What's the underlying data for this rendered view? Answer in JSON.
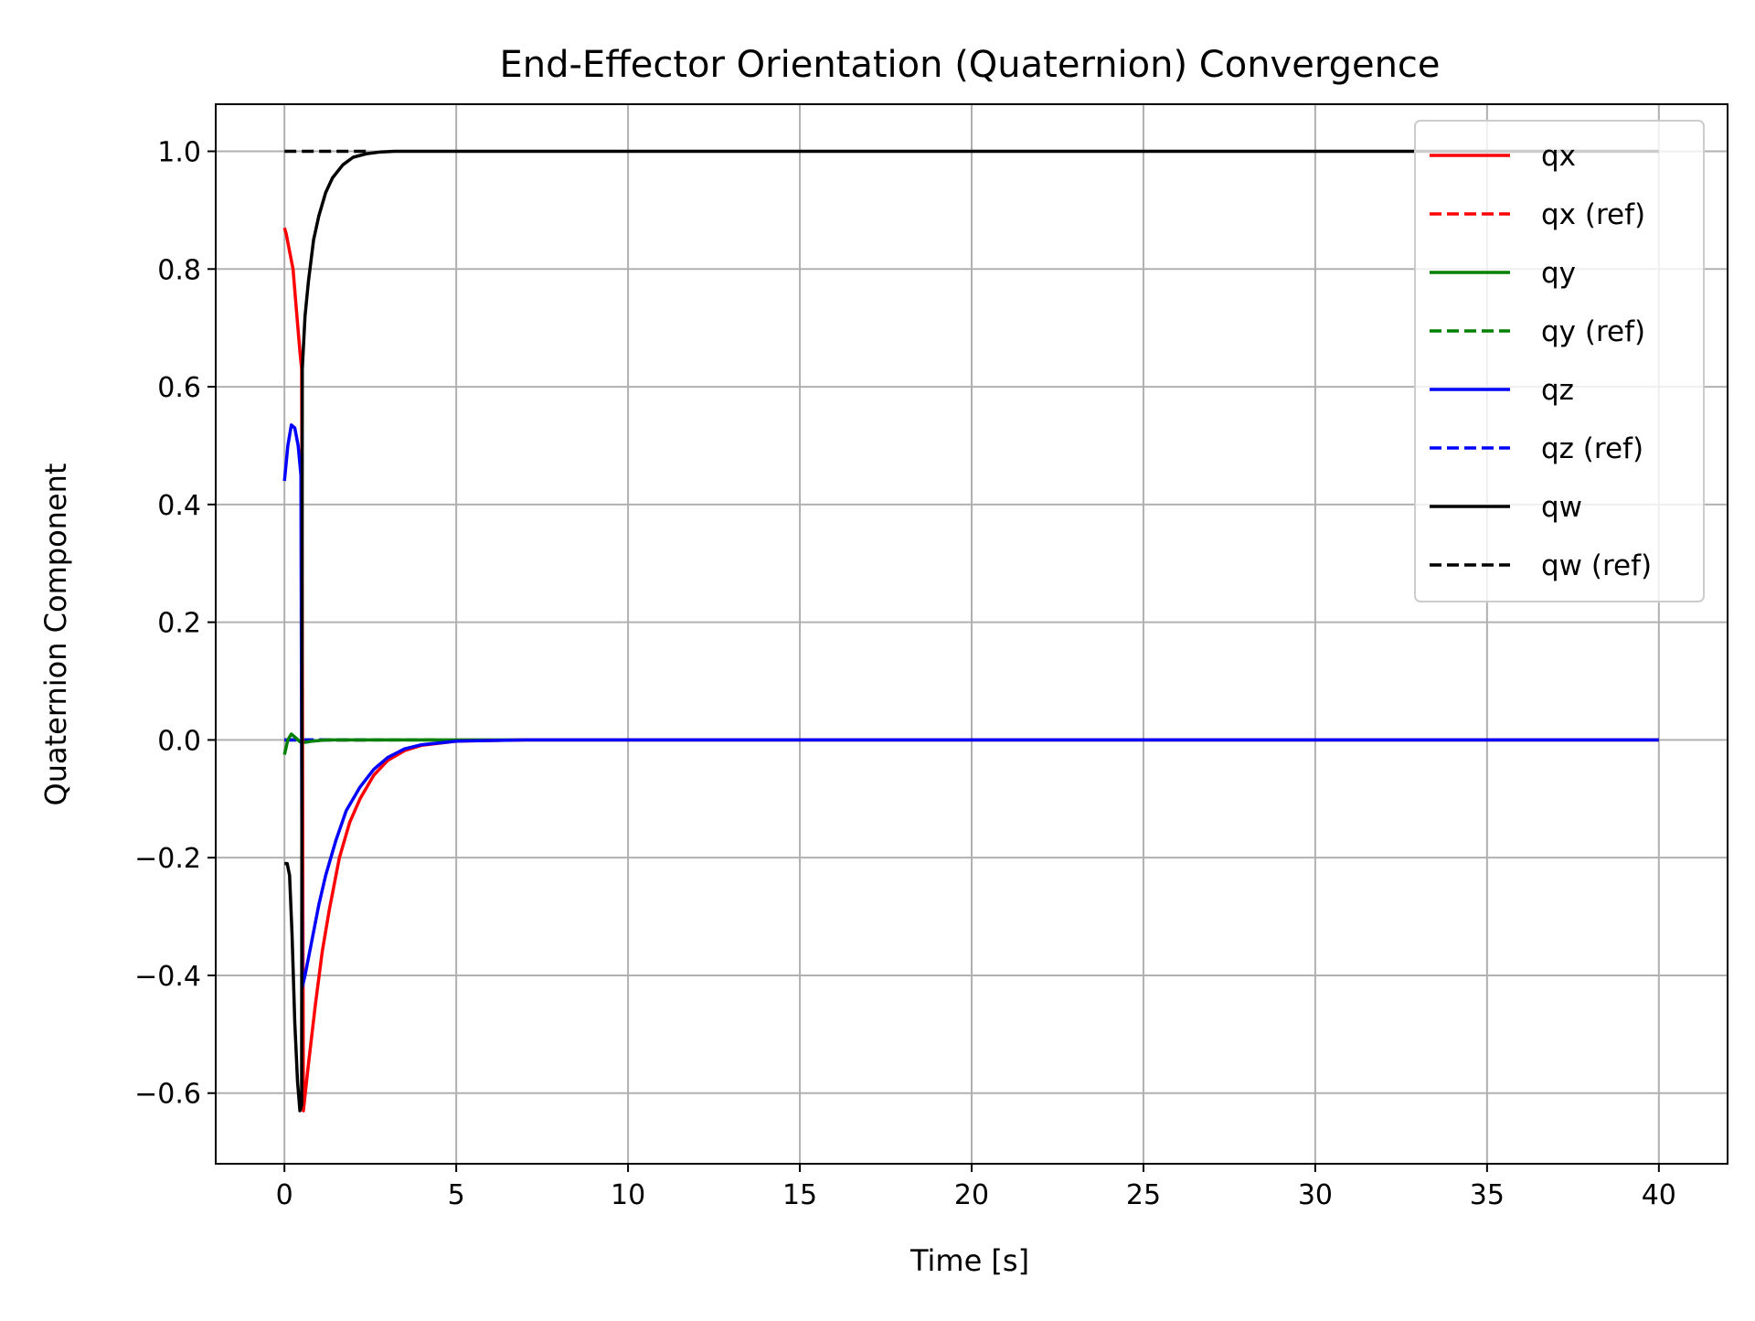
{
  "chart_data": {
    "type": "line",
    "title": "End-Effector Orientation (Quaternion) Convergence",
    "xlabel": "Time [s]",
    "ylabel": "Quaternion Component",
    "xlim": [
      -2,
      42
    ],
    "ylim": [
      -0.72,
      1.08
    ],
    "x_ticks": [
      0,
      5,
      10,
      15,
      20,
      25,
      30,
      35,
      40
    ],
    "x_tick_labels": [
      "0",
      "5",
      "10",
      "15",
      "20",
      "25",
      "30",
      "35",
      "40"
    ],
    "y_ticks": [
      -0.6,
      -0.4,
      -0.2,
      0.0,
      0.2,
      0.4,
      0.6,
      0.8,
      1.0
    ],
    "y_tick_labels": [
      "−0.6",
      "−0.4",
      "−0.2",
      "0.0",
      "0.2",
      "0.4",
      "0.6",
      "0.8",
      "1.0"
    ],
    "grid": true,
    "legend_position": "top-right",
    "series": [
      {
        "name": "qx",
        "color": "#ff0000",
        "style": "solid",
        "x": [
          0,
          0.05,
          0.15,
          0.25,
          0.35,
          0.45,
          0.5,
          0.55,
          0.7,
          0.9,
          1.1,
          1.3,
          1.6,
          1.9,
          2.2,
          2.6,
          3.0,
          3.5,
          4.0,
          5.0,
          7.0,
          10,
          20,
          30,
          40
        ],
        "y": [
          0.87,
          0.86,
          0.83,
          0.8,
          0.73,
          0.66,
          0.63,
          -0.63,
          -0.55,
          -0.45,
          -0.36,
          -0.29,
          -0.2,
          -0.14,
          -0.1,
          -0.06,
          -0.035,
          -0.018,
          -0.009,
          -0.002,
          0.0,
          0.0,
          0.0,
          0.0,
          0.0
        ]
      },
      {
        "name": "qx (ref)",
        "color": "#ff0000",
        "style": "dashed",
        "x": [
          0,
          2.5
        ],
        "y": [
          0.0,
          0.0
        ]
      },
      {
        "name": "qy",
        "color": "#008000",
        "style": "solid",
        "x": [
          0,
          0.1,
          0.2,
          0.3,
          0.45,
          0.6,
          0.8,
          1.2,
          2,
          5,
          10,
          20,
          30,
          40
        ],
        "y": [
          -0.025,
          0.0,
          0.01,
          0.005,
          -0.003,
          -0.004,
          -0.002,
          0.0,
          0.0,
          0.0,
          0.0,
          0.0,
          0.0,
          0.0
        ]
      },
      {
        "name": "qy (ref)",
        "color": "#008000",
        "style": "dashed",
        "x": [
          0,
          4.5
        ],
        "y": [
          0.0,
          0.0
        ]
      },
      {
        "name": "qz",
        "color": "#0000ff",
        "style": "solid",
        "x": [
          0,
          0.1,
          0.2,
          0.3,
          0.4,
          0.48,
          0.52,
          0.6,
          0.8,
          1.0,
          1.2,
          1.5,
          1.8,
          2.2,
          2.6,
          3.0,
          3.5,
          4.0,
          5.0,
          7.0,
          10,
          20,
          30,
          40
        ],
        "y": [
          0.44,
          0.5,
          0.535,
          0.53,
          0.5,
          0.45,
          -0.42,
          -0.4,
          -0.34,
          -0.28,
          -0.23,
          -0.17,
          -0.12,
          -0.08,
          -0.05,
          -0.03,
          -0.015,
          -0.008,
          -0.002,
          0.0,
          0.0,
          0.0,
          0.0,
          0.0
        ]
      },
      {
        "name": "qz (ref)",
        "color": "#0000ff",
        "style": "dashed",
        "x": [
          0,
          2.5
        ],
        "y": [
          0.0,
          0.0
        ]
      },
      {
        "name": "qw",
        "color": "#000000",
        "style": "solid",
        "x": [
          0,
          0.08,
          0.15,
          0.22,
          0.3,
          0.38,
          0.45,
          0.5,
          0.52,
          0.6,
          0.7,
          0.85,
          1.0,
          1.2,
          1.4,
          1.7,
          2.0,
          2.4,
          2.8,
          3.2,
          4.0,
          6.0,
          10,
          20,
          30,
          40
        ],
        "y": [
          -0.21,
          -0.21,
          -0.23,
          -0.33,
          -0.48,
          -0.58,
          -0.63,
          -0.62,
          0.63,
          0.72,
          0.78,
          0.85,
          0.89,
          0.93,
          0.955,
          0.977,
          0.99,
          0.996,
          0.999,
          1.0,
          1.0,
          1.0,
          1.0,
          1.0,
          1.0,
          1.0
        ]
      },
      {
        "name": "qw (ref)",
        "color": "#000000",
        "style": "dashed",
        "x": [
          0,
          2.5
        ],
        "y": [
          1.0,
          1.0
        ]
      }
    ]
  }
}
